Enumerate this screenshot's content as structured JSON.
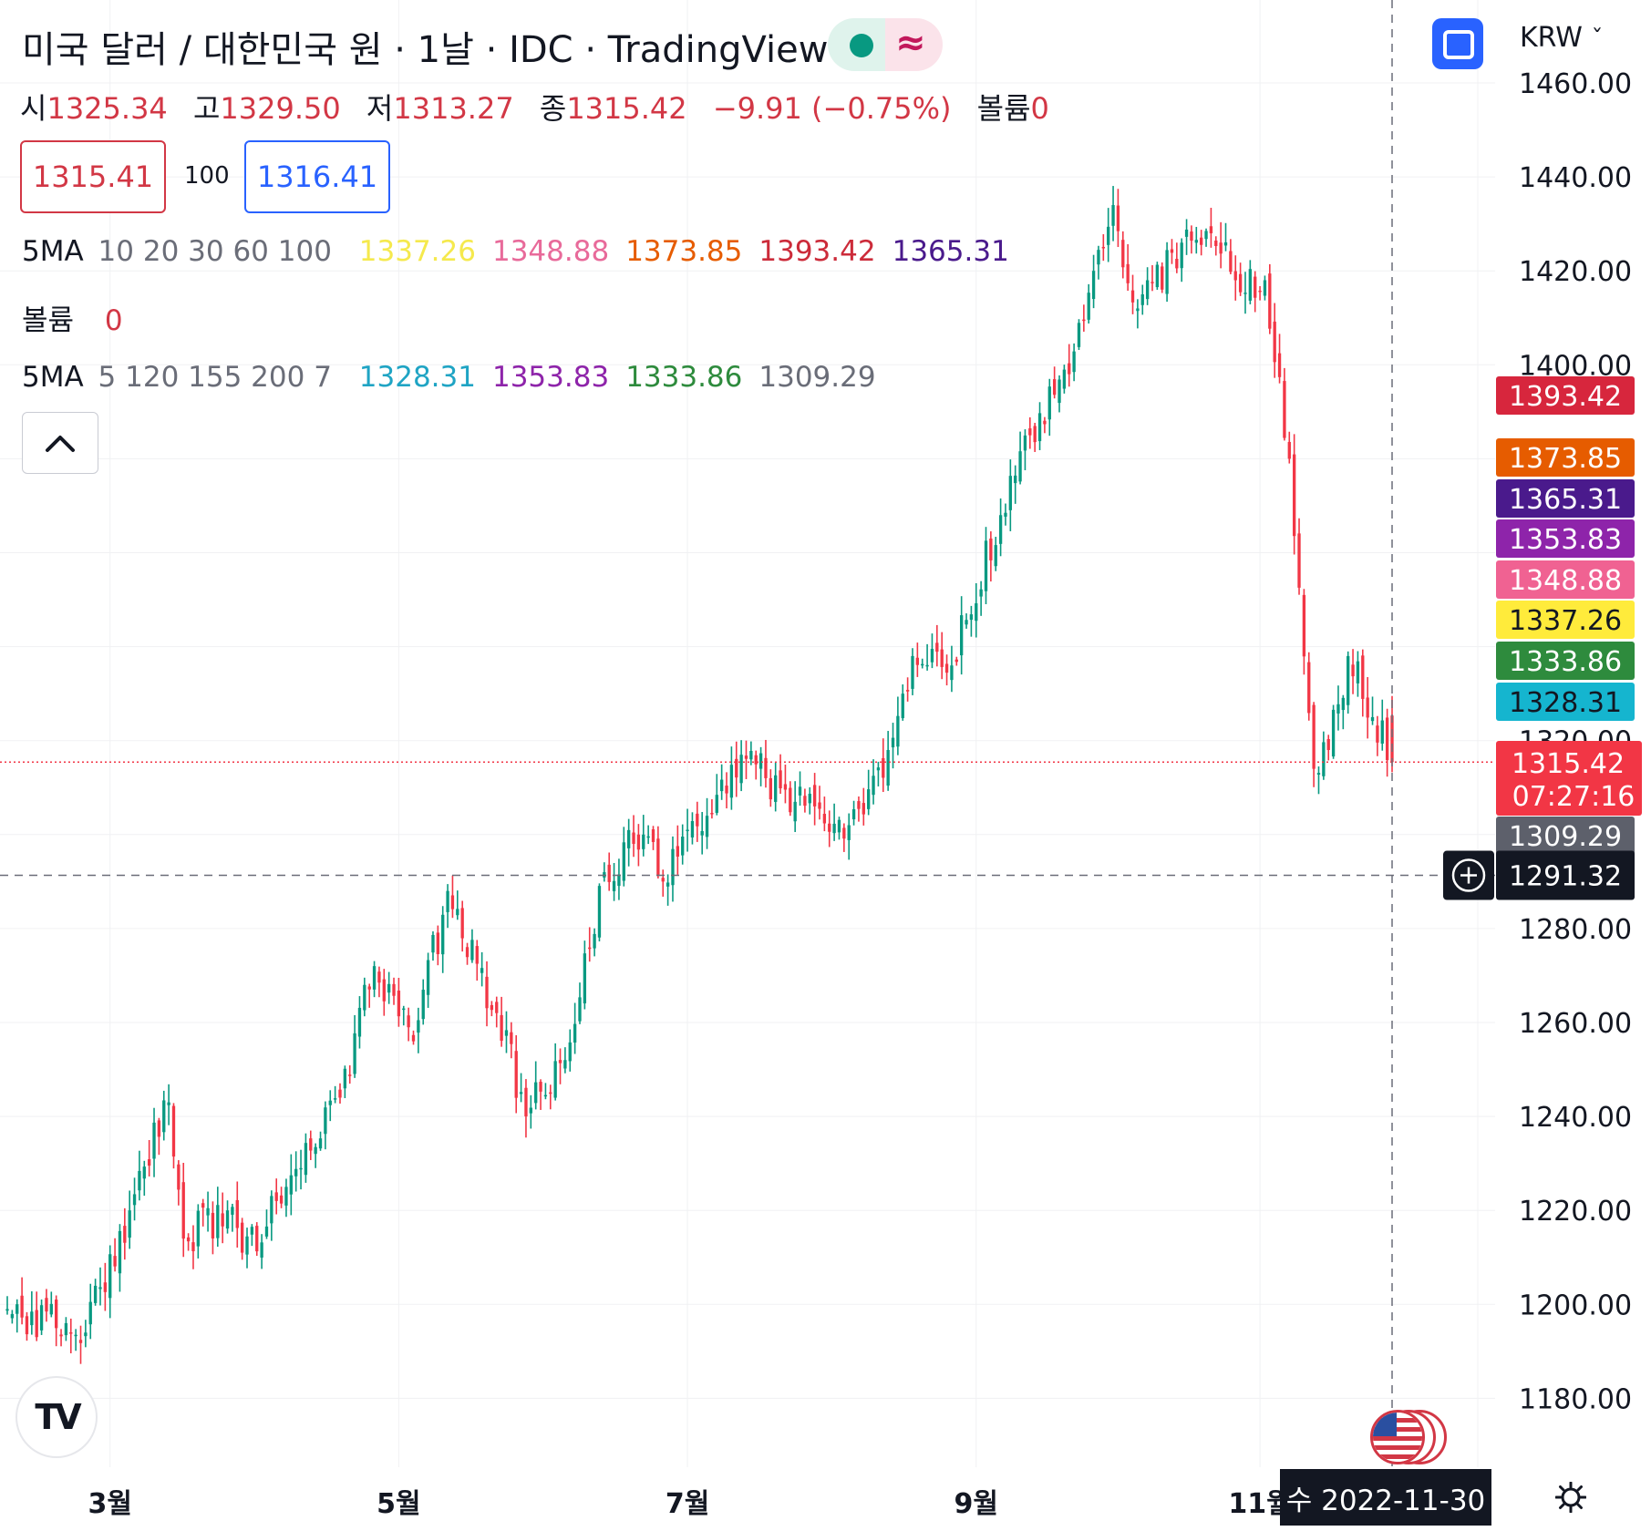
{
  "header": {
    "title": "미국 달러 / 대한민국 원 · 1날 · IDC · TradingView",
    "currency": "KRW",
    "currency_caret": "ˇ"
  },
  "ohlc": {
    "open_label": "시",
    "open": "1325.34",
    "high_label": "고",
    "high": "1329.50",
    "low_label": "저",
    "low": "1313.27",
    "close_label": "종",
    "close": "1315.42",
    "change": "−9.91 (−0.75%)",
    "volume_label": "볼륨",
    "volume": "0"
  },
  "quote": {
    "sell": "1315.41",
    "spread": "100",
    "buy": "1316.41"
  },
  "indicators": {
    "ma1": {
      "name": "5MA",
      "params": "10 20 30 60 100",
      "values": [
        {
          "v": "1337.26",
          "color": "#f5e94d"
        },
        {
          "v": "1348.88",
          "color": "#e86a9a"
        },
        {
          "v": "1373.85",
          "color": "#e65c00"
        },
        {
          "v": "1393.42",
          "color": "#cc2b3a"
        },
        {
          "v": "1365.31",
          "color": "#4a1a8c"
        }
      ]
    },
    "volume": {
      "name": "볼륨",
      "value": "0"
    },
    "ma2": {
      "name": "5MA",
      "params": "5 120 155 200 7",
      "values": [
        {
          "v": "1328.31",
          "color": "#1fa4c4"
        },
        {
          "v": "1353.83",
          "color": "#8e24aa"
        },
        {
          "v": "1333.86",
          "color": "#2e8b3d"
        },
        {
          "v": "1309.29",
          "color": "#6a6d78"
        }
      ]
    }
  },
  "icons": {
    "collapse": "chevron-up-icon",
    "fullscreen": "fullscreen-icon",
    "logo": "tradingview-logo",
    "flag": "us-flag-icon",
    "settings": "gear-icon",
    "crosshair_add": "plus-circle-icon"
  },
  "logo_text": "TV",
  "crosshair": {
    "price": "1291.32",
    "date": "수 2022-11-30"
  },
  "price_badges": [
    {
      "price": 1393.42,
      "label": "1393.42",
      "color": "#d7263d"
    },
    {
      "price": 1373.85,
      "label": "1373.85",
      "color": "#e65c00"
    },
    {
      "price": 1365.31,
      "label": "1365.31",
      "color": "#4a1a8c"
    },
    {
      "price": 1353.83,
      "label": "1353.83",
      "color": "#8e24aa"
    },
    {
      "price": 1348.88,
      "label": "1348.88",
      "color": "#f06292"
    },
    {
      "price": 1337.26,
      "label": "1337.26",
      "color": "#ffeb3b",
      "text": "#131722"
    },
    {
      "price": 1333.86,
      "label": "1333.86",
      "color": "#2e8b3d"
    },
    {
      "price": 1328.31,
      "label": "1328.31",
      "color": "#15b5cf",
      "text": "#131722"
    },
    {
      "price": 1309.29,
      "label": "1309.29",
      "color": "#5d606b"
    }
  ],
  "last_price": {
    "price": 1315.42,
    "label": "1315.42",
    "countdown": "07:27:16",
    "color": "#f23645"
  },
  "chart_data": {
    "type": "candlestick",
    "symbol": "USDKRW",
    "interval": "1D",
    "up_color": "#089981",
    "down_color": "#f23645",
    "ylim": [
      1160,
      1470
    ],
    "y_ticks": [
      1180,
      1200,
      1220,
      1240,
      1260,
      1280,
      1320,
      1400,
      1420,
      1440,
      1460
    ],
    "y_tick_labels": [
      "1180.00",
      "1200.00",
      "1220.00",
      "1240.00",
      "1260.00",
      "1280.00",
      "1320.00",
      "1400.00",
      "1420.00",
      "1440.00",
      "1460.00"
    ],
    "x_tick_labels": [
      {
        "label": "3월",
        "index": 21
      },
      {
        "label": "5월",
        "index": 80
      },
      {
        "label": "7월",
        "index": 139
      },
      {
        "label": "9월",
        "index": 198
      },
      {
        "label": "11월",
        "index": 256
      }
    ],
    "candle_count": 284,
    "anchors": [
      {
        "i": 0,
        "close": 1199
      },
      {
        "i": 12,
        "close": 1196
      },
      {
        "i": 16,
        "close": 1194
      },
      {
        "i": 25,
        "close": 1220
      },
      {
        "i": 33,
        "close": 1243
      },
      {
        "i": 36,
        "close": 1214
      },
      {
        "i": 45,
        "close": 1220
      },
      {
        "i": 48,
        "close": 1211
      },
      {
        "i": 55,
        "close": 1222
      },
      {
        "i": 68,
        "close": 1244
      },
      {
        "i": 75,
        "close": 1272
      },
      {
        "i": 83,
        "close": 1256
      },
      {
        "i": 90,
        "close": 1288
      },
      {
        "i": 100,
        "close": 1262
      },
      {
        "i": 106,
        "close": 1240
      },
      {
        "i": 114,
        "close": 1252
      },
      {
        "i": 122,
        "close": 1292
      },
      {
        "i": 130,
        "close": 1300
      },
      {
        "i": 134,
        "close": 1290
      },
      {
        "i": 143,
        "close": 1304
      },
      {
        "i": 150,
        "close": 1317
      },
      {
        "i": 155,
        "close": 1312
      },
      {
        "i": 165,
        "close": 1306
      },
      {
        "i": 172,
        "close": 1302
      },
      {
        "i": 180,
        "close": 1318
      },
      {
        "i": 185,
        "close": 1338
      },
      {
        "i": 193,
        "close": 1336
      },
      {
        "i": 203,
        "close": 1368
      },
      {
        "i": 209,
        "close": 1385
      },
      {
        "i": 217,
        "close": 1398
      },
      {
        "i": 222,
        "close": 1420
      },
      {
        "i": 226,
        "close": 1434
      },
      {
        "i": 231,
        "close": 1412
      },
      {
        "i": 240,
        "close": 1426
      },
      {
        "i": 246,
        "close": 1428
      },
      {
        "i": 251,
        "close": 1418
      },
      {
        "i": 257,
        "close": 1418
      },
      {
        "i": 262,
        "close": 1380
      },
      {
        "i": 267,
        "close": 1314
      },
      {
        "i": 270,
        "close": 1318
      },
      {
        "i": 274,
        "close": 1338
      },
      {
        "i": 279,
        "close": 1325
      },
      {
        "i": 283,
        "close": 1315.42
      }
    ],
    "last": {
      "open": 1325.34,
      "high": 1329.5,
      "low": 1313.27,
      "close": 1315.42
    }
  }
}
